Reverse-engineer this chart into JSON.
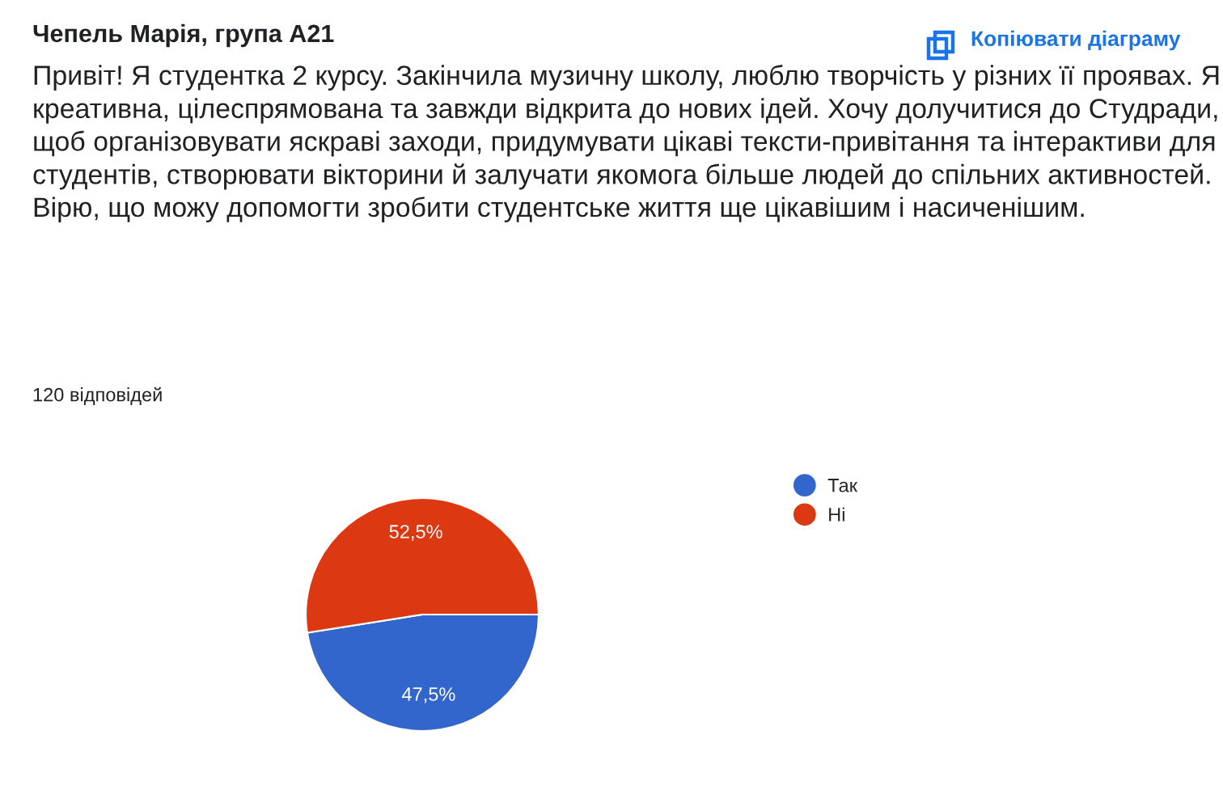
{
  "chart_data": {
    "type": "pie",
    "title": "Чепель Марія, група А21",
    "subtitle": "Привіт! Я студентка 2 курсу. Закінчила музичну школу, люблю творчість у різних її проявах. Я креативна, цілеспрямована та завжди відкрита до нових ідей. Хочу долучитися до Студради, щоб організовувати яскраві заходи, придумувати цікаві тексти-привітання та інтерактиви для студентів, створювати вікторини й залучати якомога більше людей до спільних активностей. Вірю, що можу допомогти зробити студентське життя ще цікавішим і насиченішим.",
    "annotations": [
      "120 відповідей",
      "Копіювати діаграму"
    ],
    "categories": [
      "Так",
      "Ні"
    ],
    "values": [
      47.5,
      52.5
    ],
    "colors": [
      "#3366cc",
      "#dc3912"
    ],
    "value_labels": [
      "47,5%",
      "52,5%"
    ],
    "legend": "right"
  }
}
